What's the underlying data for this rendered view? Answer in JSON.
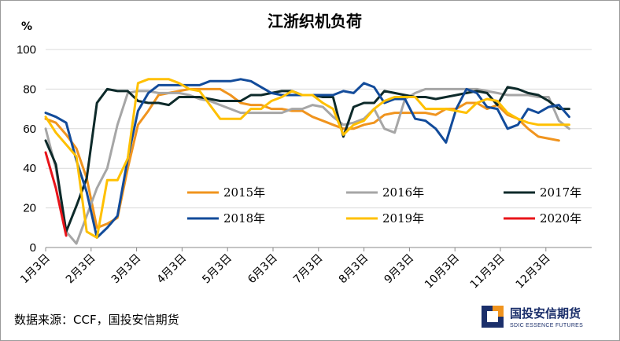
{
  "source_text": "数据来源：CCF，国投安信期货",
  "logo": {
    "name_cn": "国投安信期货",
    "name_en": "SDIC ESSENCE FUTURES"
  },
  "chart_data": {
    "type": "line",
    "title": "江浙织机负荷",
    "ylabel": "%",
    "ylim": [
      0,
      100
    ],
    "yticks": [
      "0",
      "20",
      "40",
      "60",
      "80",
      "100"
    ],
    "x_tick_labels": [
      "1月3日",
      "2月3日",
      "3月3日",
      "4月3日",
      "5月3日",
      "6月3日",
      "7月3日",
      "8月3日",
      "9月3日",
      "10月3日",
      "11月3日",
      "12月3日"
    ],
    "x_unit": "week index (0 = 1月3日, ~4.4 weeks per month)",
    "grid": "horizontal",
    "legend_position": "center",
    "series": [
      {
        "name": "2015年",
        "color": "#f0941e",
        "x": [
          0,
          1,
          2,
          3,
          4,
          5,
          6,
          7,
          8,
          9,
          10,
          11,
          12,
          13,
          14,
          15,
          16,
          17,
          18,
          19,
          20,
          21,
          22,
          23,
          24,
          25,
          26,
          27,
          28,
          29,
          30,
          31,
          32,
          33,
          34,
          35,
          36,
          37,
          38,
          39,
          40,
          41,
          42,
          43,
          44,
          45,
          46,
          47,
          48,
          49,
          50
        ],
        "values": [
          65,
          63,
          57,
          50,
          35,
          10,
          12,
          15,
          40,
          62,
          69,
          77,
          78,
          79,
          80,
          80,
          80,
          80,
          77,
          73,
          72,
          72,
          70,
          70,
          69,
          69,
          66,
          64,
          62,
          60,
          60,
          62,
          63,
          67,
          68,
          68,
          68,
          68,
          67,
          70,
          70,
          73,
          73,
          70,
          72,
          67,
          65,
          60,
          56,
          55,
          54
        ]
      },
      {
        "name": "2016年",
        "color": "#a6a6a6",
        "x": [
          0,
          1,
          2,
          3,
          4,
          5,
          6,
          7,
          8,
          9,
          10,
          11,
          12,
          13,
          14,
          15,
          16,
          17,
          18,
          19,
          20,
          21,
          22,
          23,
          24,
          25,
          26,
          27,
          28,
          29,
          30,
          31,
          32,
          33,
          34,
          35,
          36,
          37,
          38,
          39,
          40,
          41,
          42,
          43,
          44,
          45,
          46,
          47,
          48,
          49,
          50,
          51
        ],
        "values": [
          60,
          40,
          8,
          2,
          16,
          30,
          40,
          62,
          78,
          79,
          79,
          78,
          78,
          78,
          77,
          75,
          74,
          72,
          70,
          68,
          68,
          68,
          68,
          68,
          70,
          70,
          72,
          71,
          66,
          62,
          63,
          65,
          70,
          60,
          58,
          75,
          78,
          80,
          80,
          80,
          80,
          80,
          80,
          79,
          78,
          77,
          77,
          77,
          76,
          76,
          64,
          60
        ]
      },
      {
        "name": "2017年",
        "color": "#0d2a2a",
        "x": [
          0,
          1,
          2,
          3,
          4,
          5,
          6,
          7,
          8,
          9,
          10,
          11,
          12,
          13,
          14,
          15,
          16,
          17,
          18,
          19,
          20,
          21,
          22,
          23,
          24,
          25,
          26,
          27,
          28,
          29,
          30,
          31,
          32,
          33,
          34,
          35,
          36,
          37,
          38,
          39,
          40,
          41,
          42,
          43,
          44,
          45,
          46,
          47,
          48,
          49,
          50,
          51
        ],
        "values": [
          54,
          42,
          8,
          21,
          35,
          73,
          80,
          79,
          79,
          74,
          73,
          73,
          72,
          76,
          76,
          76,
          75,
          74,
          74,
          74,
          77,
          77,
          78,
          79,
          79,
          77,
          77,
          76,
          76,
          56,
          71,
          73,
          73,
          79,
          78,
          77,
          76,
          76,
          75,
          76,
          77,
          78,
          79,
          78,
          72,
          81,
          80,
          78,
          77,
          74,
          70,
          70
        ]
      },
      {
        "name": "2018年",
        "color": "#124b9a",
        "x": [
          0,
          1,
          2,
          3,
          4,
          5,
          6,
          7,
          8,
          9,
          10,
          11,
          12,
          13,
          14,
          15,
          16,
          17,
          18,
          19,
          20,
          21,
          22,
          23,
          24,
          25,
          26,
          27,
          28,
          29,
          30,
          31,
          32,
          33,
          34,
          35,
          36,
          37,
          38,
          39,
          40,
          41,
          42,
          43,
          44,
          45,
          46,
          47,
          48,
          49,
          50,
          51
        ],
        "values": [
          68,
          66,
          63,
          44,
          28,
          5,
          10,
          16,
          45,
          69,
          78,
          82,
          82,
          82,
          82,
          82,
          84,
          84,
          84,
          85,
          84,
          81,
          78,
          77,
          77,
          77,
          77,
          77,
          77,
          79,
          78,
          83,
          81,
          73,
          75,
          75,
          65,
          64,
          60,
          53,
          70,
          80,
          78,
          71,
          70,
          60,
          62,
          70,
          68,
          71,
          72,
          66
        ]
      },
      {
        "name": "2019年",
        "color": "#ffc000",
        "x": [
          0,
          1,
          2,
          3,
          4,
          5,
          6,
          7,
          8,
          9,
          10,
          11,
          12,
          13,
          14,
          15,
          16,
          17,
          18,
          19,
          20,
          21,
          22,
          23,
          24,
          25,
          26,
          27,
          28,
          29,
          30,
          31,
          32,
          33,
          34,
          35,
          36,
          37,
          38,
          39,
          40,
          41,
          42,
          43,
          44,
          45,
          46,
          47,
          48,
          49,
          50,
          51
        ],
        "values": [
          66,
          58,
          52,
          46,
          8,
          5,
          34,
          34,
          45,
          83,
          85,
          85,
          85,
          83,
          80,
          79,
          72,
          65,
          65,
          65,
          70,
          70,
          74,
          76,
          79,
          77,
          77,
          73,
          70,
          57,
          62,
          64,
          70,
          74,
          76,
          76,
          76,
          70,
          70,
          70,
          69,
          68,
          73,
          75,
          74,
          68,
          65,
          63,
          62,
          62,
          62,
          62
        ]
      },
      {
        "name": "2020年",
        "color": "#e8141a",
        "x": [
          0,
          1,
          2
        ],
        "values": [
          48,
          30,
          6
        ]
      }
    ]
  }
}
